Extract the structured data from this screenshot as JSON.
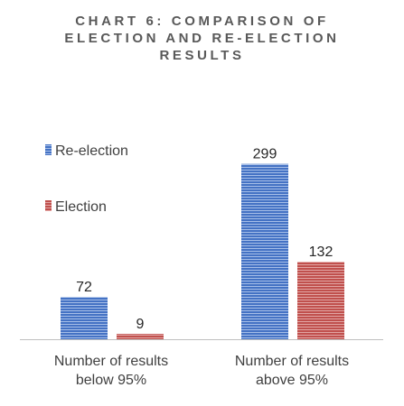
{
  "chart_data": {
    "type": "bar",
    "title_lines": [
      "CHART 6: COMPARISON OF",
      "ELECTION AND RE-ELECTION",
      "RESULTS"
    ],
    "categories": [
      [
        "Number of results",
        "below 95%"
      ],
      [
        "Number of results",
        "above 95%"
      ]
    ],
    "series": [
      {
        "name": "Re-election",
        "values": [
          72,
          299
        ],
        "color": "#4472C4"
      },
      {
        "name": "Election",
        "values": [
          9,
          132
        ],
        "color": "#C0504D"
      }
    ],
    "ylim": [
      0,
      320
    ],
    "grid": false,
    "legend": "top-left",
    "data_labels": true
  }
}
